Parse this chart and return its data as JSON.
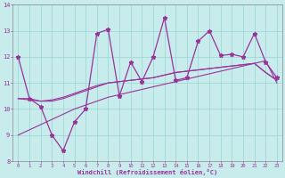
{
  "xlabel": "Windchill (Refroidissement éolien,°C)",
  "x_values": [
    0,
    1,
    2,
    3,
    4,
    5,
    6,
    7,
    8,
    9,
    10,
    11,
    12,
    13,
    14,
    15,
    16,
    17,
    18,
    19,
    20,
    21,
    22,
    23
  ],
  "y_main": [
    12.0,
    10.4,
    10.1,
    9.0,
    8.4,
    9.5,
    10.0,
    12.9,
    13.05,
    10.5,
    11.8,
    11.05,
    12.0,
    13.5,
    11.1,
    11.2,
    12.6,
    13.0,
    12.05,
    12.1,
    12.0,
    12.9,
    11.8,
    11.2
  ],
  "y_curve1": [
    10.4,
    10.4,
    10.3,
    10.3,
    10.4,
    10.55,
    10.7,
    10.85,
    11.0,
    11.05,
    11.1,
    11.15,
    11.2,
    11.3,
    11.4,
    11.45,
    11.5,
    11.55,
    11.6,
    11.65,
    11.7,
    11.75,
    11.4,
    11.1
  ],
  "y_curve2": [
    10.4,
    10.35,
    10.3,
    10.35,
    10.45,
    10.6,
    10.75,
    10.9,
    11.0,
    11.05,
    11.1,
    11.15,
    11.2,
    11.3,
    11.4,
    11.45,
    11.5,
    11.55,
    11.6,
    11.65,
    11.7,
    11.75,
    11.4,
    11.1
  ],
  "y_linear": [
    9.0,
    9.2,
    9.4,
    9.6,
    9.8,
    10.0,
    10.15,
    10.3,
    10.45,
    10.55,
    10.65,
    10.75,
    10.85,
    10.95,
    11.05,
    11.15,
    11.25,
    11.35,
    11.45,
    11.55,
    11.65,
    11.75,
    11.85,
    11.0
  ],
  "line_color": "#993399",
  "bg_color": "#c8ecec",
  "grid_color": "#a0d8d8",
  "ylim": [
    8,
    14
  ],
  "yticks": [
    8,
    9,
    10,
    11,
    12,
    13,
    14
  ],
  "xlim": [
    -0.5,
    23.5
  ],
  "xticks": [
    0,
    1,
    2,
    3,
    4,
    5,
    6,
    7,
    8,
    9,
    10,
    11,
    12,
    13,
    14,
    15,
    16,
    17,
    18,
    19,
    20,
    21,
    22,
    23
  ]
}
